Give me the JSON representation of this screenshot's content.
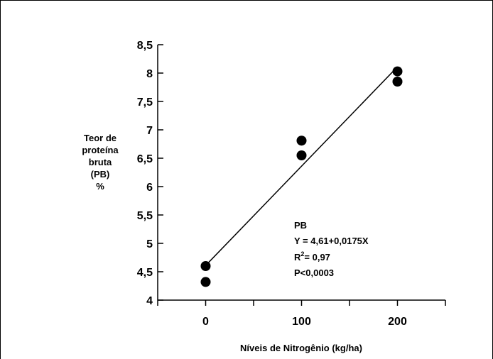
{
  "chart_data": {
    "type": "scatter",
    "xlabel": "Níveis de Nitrogênio (kg/ha)",
    "ylabel_lines": [
      "Teor de",
      "proteína",
      "bruta",
      "(PB)",
      "%"
    ],
    "x_ticks": [
      "0",
      "100",
      "200"
    ],
    "y_ticks": [
      "4",
      "4,5",
      "5",
      "5,5",
      "6",
      "6,5",
      "7",
      "7,5",
      "8",
      "8,5"
    ],
    "xlim": [
      -50,
      250
    ],
    "ylim": [
      4,
      8.5
    ],
    "grid": false,
    "points": [
      {
        "x": 0,
        "y": 4.6
      },
      {
        "x": 0,
        "y": 4.32
      },
      {
        "x": 100,
        "y": 6.81
      },
      {
        "x": 100,
        "y": 6.55
      },
      {
        "x": 200,
        "y": 8.03
      },
      {
        "x": 200,
        "y": 7.85
      }
    ],
    "regression": {
      "intercept": 4.61,
      "slope": 0.0175,
      "x_range": [
        0,
        200
      ]
    },
    "annotation": {
      "title": "PB",
      "equation": "Y = 4,61+0,0175X",
      "r2_prefix": "R",
      "r2_sup": "2",
      "r2_value": "= 0,97",
      "p_value": "P<0,0003"
    },
    "colors": {
      "marker": "#000000",
      "line": "#000000",
      "background": "#ffffff"
    }
  }
}
